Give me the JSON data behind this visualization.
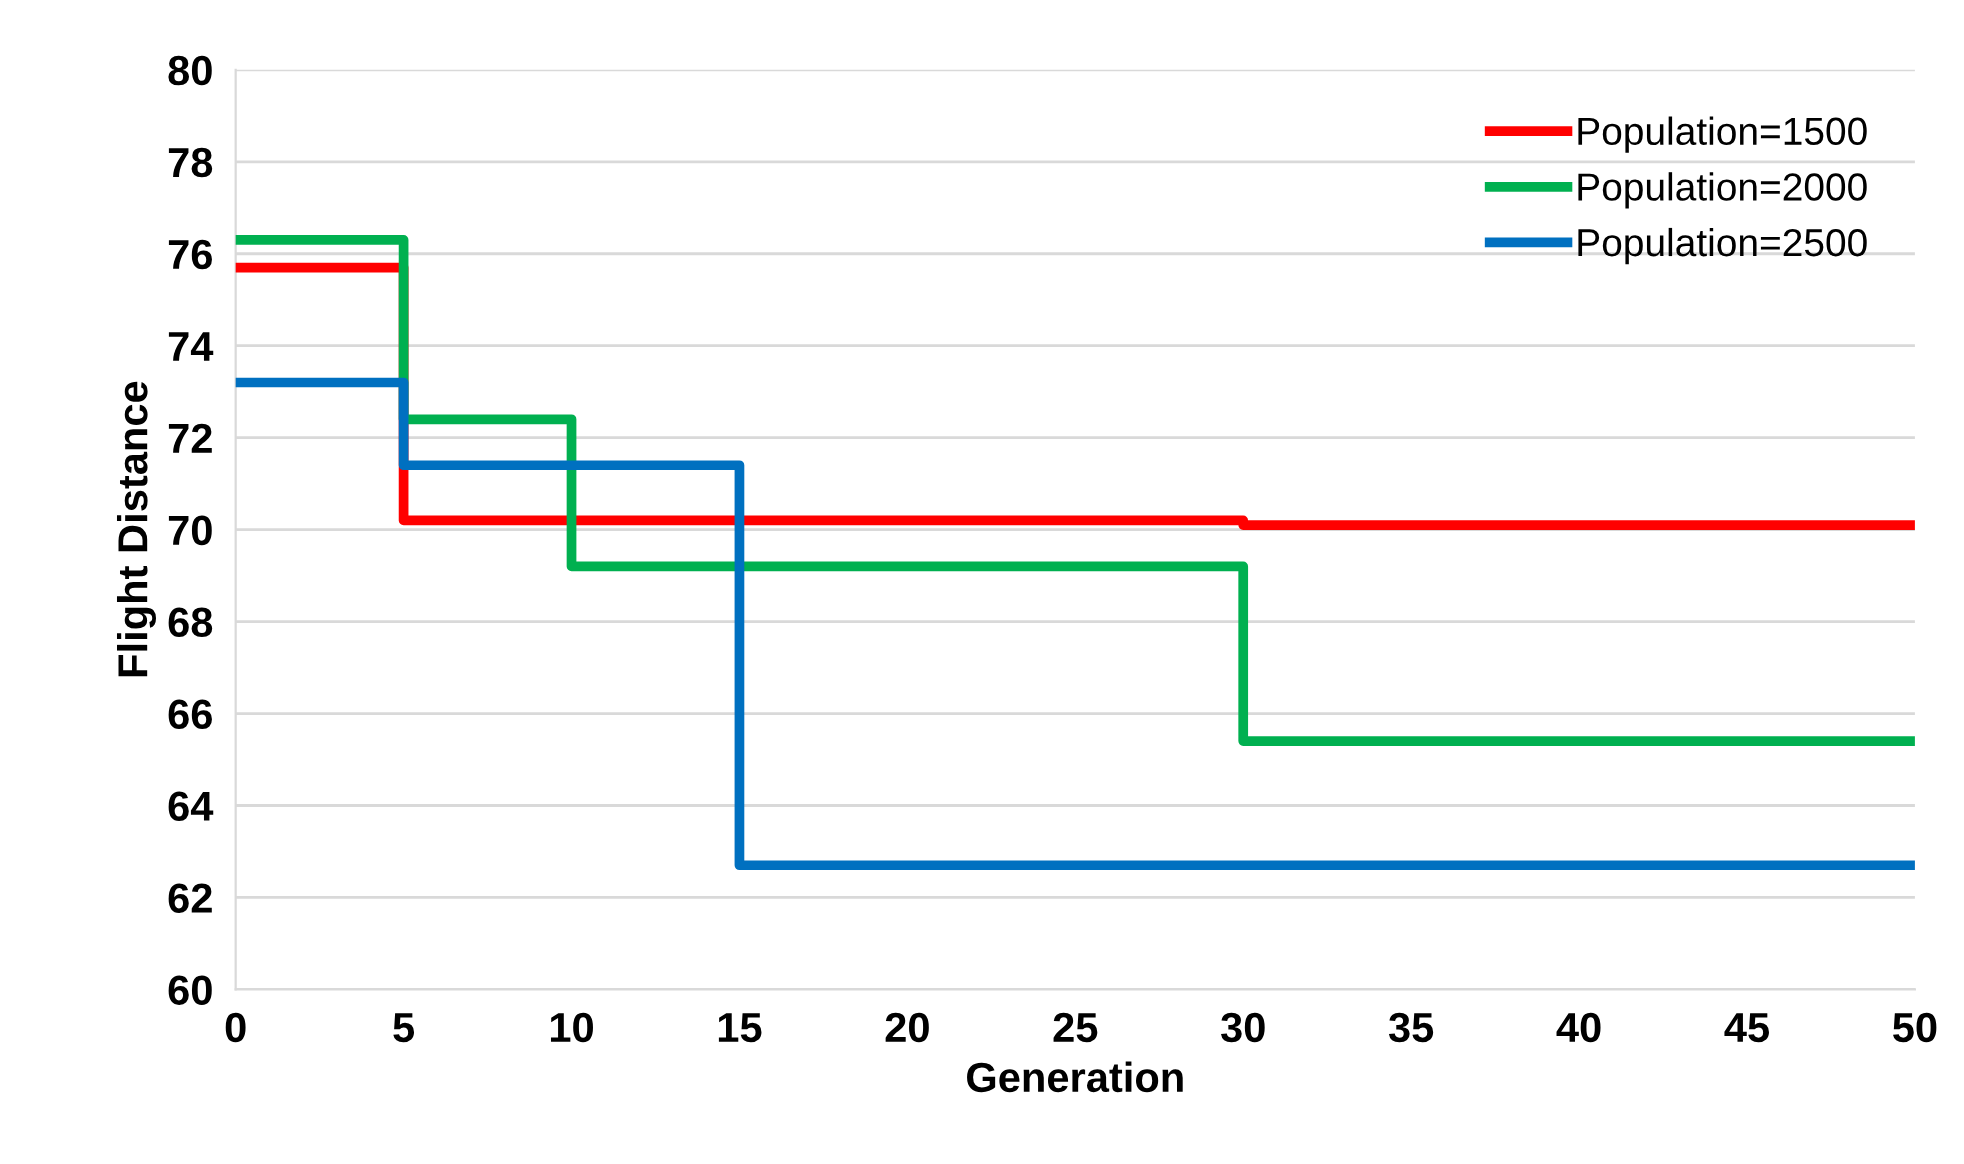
{
  "chart_data": {
    "type": "step",
    "xlabel": "Generation",
    "ylabel": "Flight Distance",
    "xlim": [
      0,
      50
    ],
    "xticks": [
      0,
      5,
      10,
      15,
      20,
      25,
      30,
      35,
      40,
      45,
      50
    ],
    "ylim": [
      60,
      80
    ],
    "yticks": [
      60,
      62,
      64,
      66,
      68,
      70,
      72,
      74,
      76,
      78,
      80
    ],
    "grid": "y",
    "legend": "top right",
    "marker": "none",
    "line_style": "solid",
    "series": [
      {
        "name": "Population=1500",
        "color": "#ff0000",
        "x": [
          0,
          5,
          30,
          50
        ],
        "values": [
          75.7,
          70.2,
          70.1,
          70.1
        ]
      },
      {
        "name": "Population=2000",
        "color": "#00b050",
        "x": [
          0,
          5,
          10,
          30,
          50
        ],
        "values": [
          76.3,
          72.4,
          69.2,
          65.4,
          65.4
        ]
      },
      {
        "name": "Population=2500",
        "color": "#0070c0",
        "x": [
          0,
          5,
          15,
          50
        ],
        "values": [
          73.2,
          71.4,
          62.7,
          62.7
        ]
      }
    ]
  }
}
